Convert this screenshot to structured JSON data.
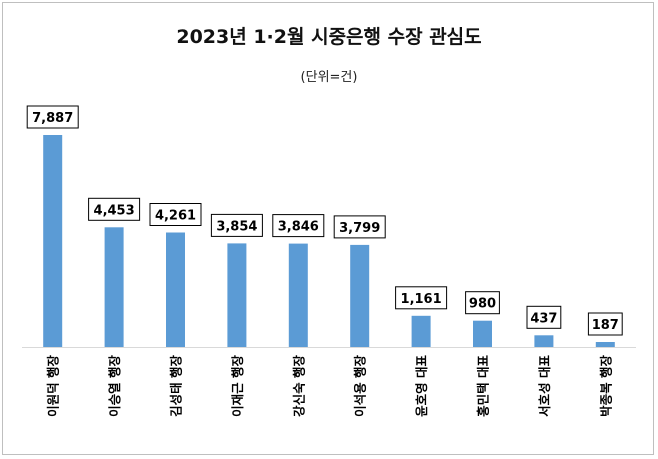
{
  "chart_data": {
    "type": "bar",
    "title": "2023년 1·2월 시중은행 수장 관심도",
    "subtitle": "(단위=건)",
    "categories": [
      "이원덕 행장",
      "이승열 행장",
      "김성태 행장",
      "이재근 행장",
      "강신숙 행장",
      "이석용 행장",
      "윤호영 대표",
      "홍민택 대표",
      "서호성 대표",
      "박종복 행장"
    ],
    "values": [
      7887,
      4453,
      4261,
      3854,
      3846,
      3799,
      1161,
      980,
      437,
      187
    ],
    "value_labels": [
      "7,887",
      "4,453",
      "4,261",
      "3,854",
      "3,846",
      "3,799",
      "1,161",
      "980",
      "437",
      "187"
    ],
    "bar_color": "#5b9bd5",
    "grid": false,
    "legend": "none"
  }
}
